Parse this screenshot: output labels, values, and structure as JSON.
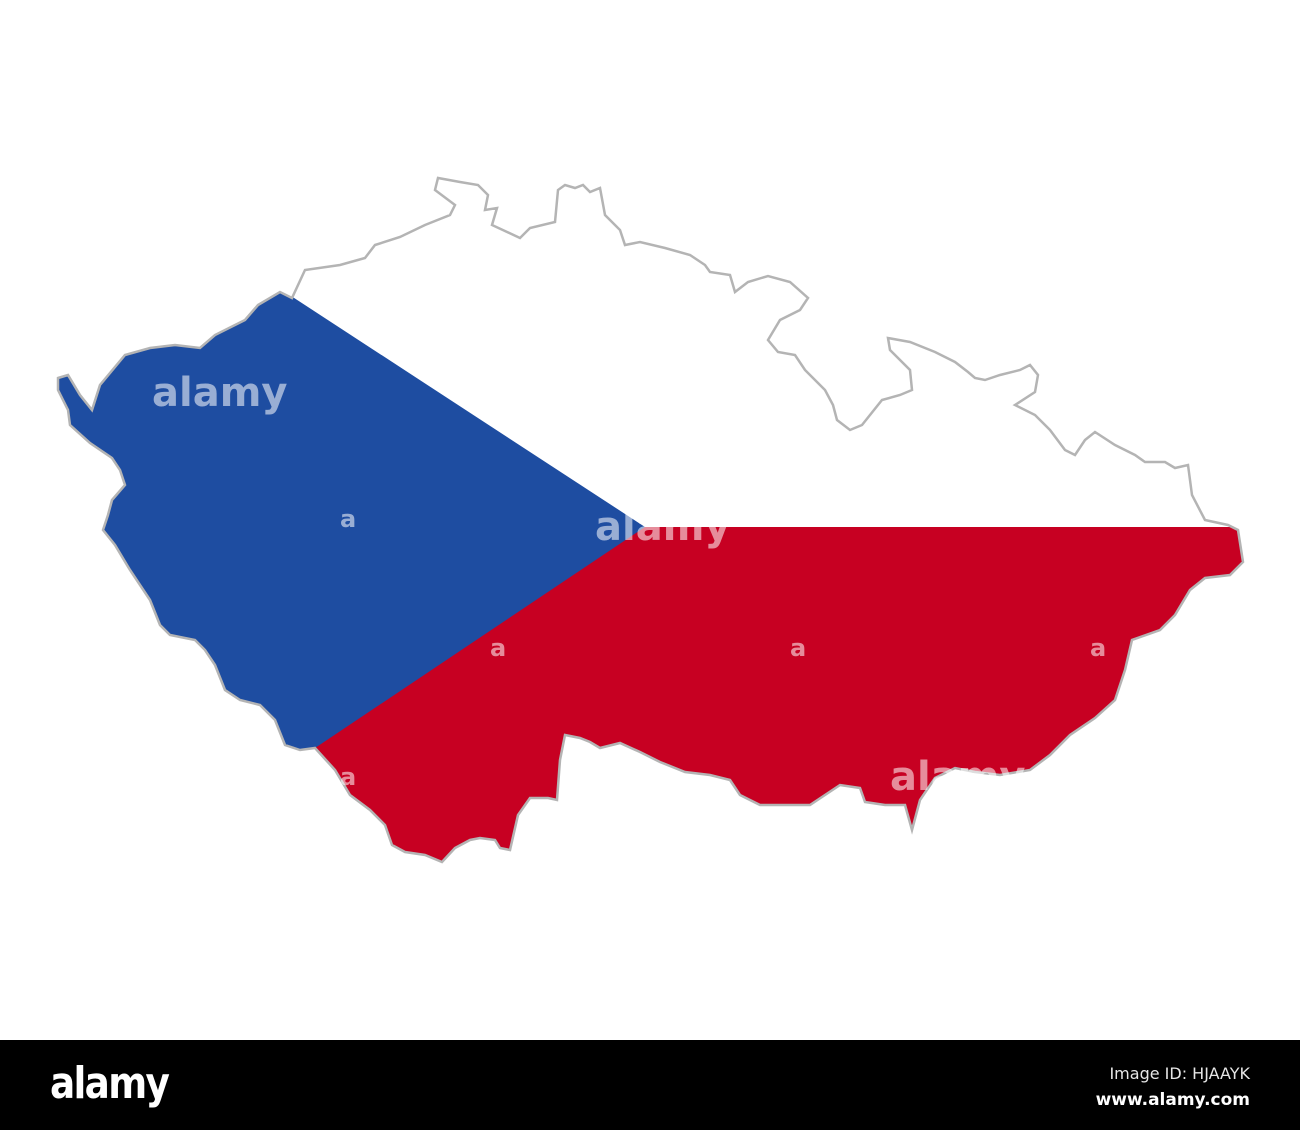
{
  "map": {
    "country": "Czech Republic",
    "flag_colors": {
      "white": "#ffffff",
      "red": "#c70022",
      "blue": "#1e4da1"
    },
    "outline_color": "#b4b4b4"
  },
  "watermark": {
    "text": "alamy",
    "small": "a"
  },
  "footer": {
    "logo": "alamy",
    "image_id_label": "Image ID:",
    "image_id": "HJAAYK",
    "website": "www.alamy.com"
  }
}
